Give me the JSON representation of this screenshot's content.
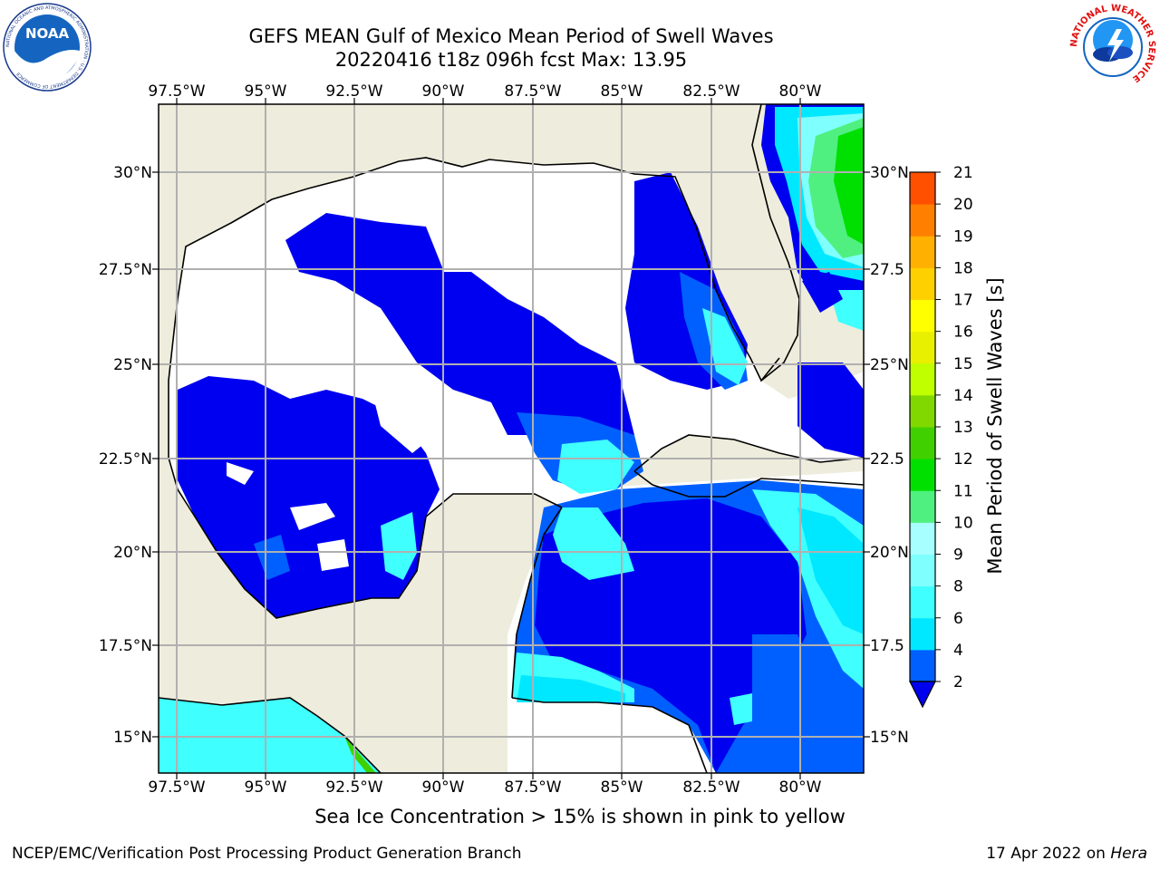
{
  "header": {
    "title_line1": "GEFS MEAN Gulf of Mexico Mean Period of Swell Waves",
    "title_line2": "20220416 t18z 096h fcst   Max: 13.95"
  },
  "logos": {
    "left": {
      "name": "noaa-logo",
      "text": "NOAA",
      "ring_text": "NATIONAL OCEANIC AND ATMOSPHERIC ADMINISTRATION · U.S. DEPARTMENT OF COMMERCE"
    },
    "right": {
      "name": "nws-logo",
      "ring_text": "NATIONAL WEATHER SERVICE"
    }
  },
  "map": {
    "lon_ticks": [
      "97.5°W",
      "95°W",
      "92.5°W",
      "90°W",
      "87.5°W",
      "85°W",
      "82.5°W",
      "80°W"
    ],
    "lat_ticks_left": [
      "30°N",
      "27.5°N",
      "25°N",
      "22.5°N",
      "20°N",
      "17.5°N",
      "15°N"
    ],
    "lat_ticks_right": [
      "30°N",
      "27.5",
      "25°N",
      "22.5",
      "20°N",
      "17.5",
      "15°N"
    ],
    "colors": {
      "land": "#eeecdc",
      "ocean_blank": "#ffffff",
      "grid": "#b0b0b0",
      "coast": "#000000"
    }
  },
  "colorbar": {
    "label": "Mean Period of Swell Waves [s]",
    "tick_labels": [
      "2",
      "4",
      "6",
      "8",
      "9",
      "10",
      "11",
      "12",
      "13",
      "14",
      "15",
      "16",
      "17",
      "18",
      "19",
      "20",
      "21"
    ],
    "colors": [
      "#0060ff",
      "#00e8ff",
      "#40ffff",
      "#80ffff",
      "#a8ffff",
      "#50f080",
      "#00e000",
      "#40d000",
      "#80d800",
      "#c0ff00",
      "#e8f000",
      "#ffff00",
      "#ffd000",
      "#ffb000",
      "#ff8000",
      "#ff5000",
      "#ff2000",
      "#ff0000"
    ],
    "extend_color": "#0000f0"
  },
  "footer": {
    "subtitle": "Sea Ice Concentration > 15% is shown in pink to yellow",
    "left": "NCEP/EMC/Verification Post Processing Product Generation Branch",
    "right_date": "17 Apr 2022 on ",
    "right_host": "Hera"
  }
}
